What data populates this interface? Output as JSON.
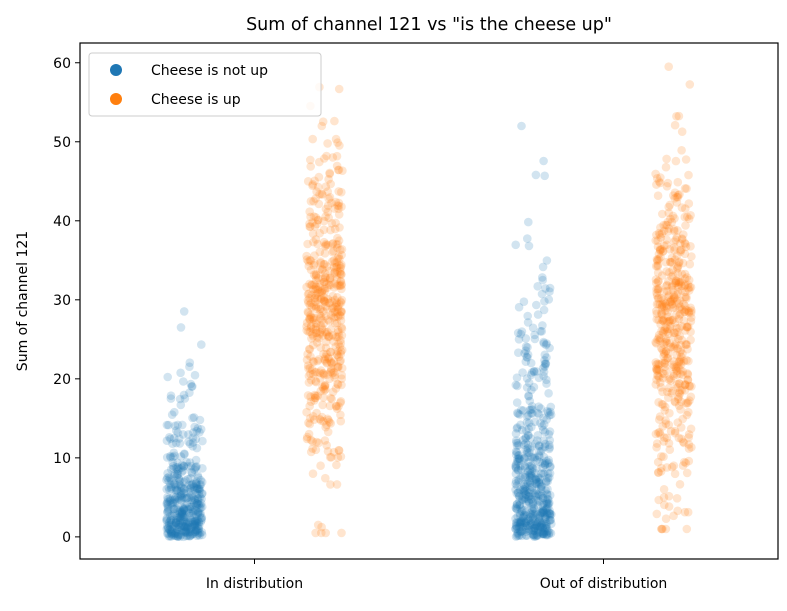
{
  "chart_data": {
    "type": "scatter",
    "subtype": "strip",
    "title": "Sum of channel 121 vs \"is the cheese up\"",
    "xlabel": "",
    "ylabel": "Sum of channel 121",
    "categories": [
      "In distribution",
      "Out of distribution"
    ],
    "ylim": [
      -2.8,
      62.5
    ],
    "yticks": [
      0,
      10,
      20,
      30,
      40,
      50,
      60
    ],
    "grid": false,
    "legend": {
      "placement": "top-left",
      "entries": [
        {
          "label": "Cheese is not up",
          "color": "#1f77b4"
        },
        {
          "label": "Cheese is up",
          "color": "#ff7f0e"
        }
      ]
    },
    "series": [
      {
        "name": "Cheese is not up",
        "color": "#1f77b4",
        "groups": [
          {
            "category": "In distribution",
            "n": 420,
            "min": 0,
            "max": 29,
            "median": 4,
            "distribution": "exponential",
            "scale": 5.5
          },
          {
            "category": "Out of distribution",
            "n": 520,
            "min": 0,
            "max": 52,
            "median": 6,
            "distribution": "exponential",
            "scale": 9
          }
        ]
      },
      {
        "name": "Cheese is up",
        "color": "#ff7f0e",
        "groups": [
          {
            "category": "In distribution",
            "n": 480,
            "min": 0.5,
            "max": 58.5,
            "median": 30,
            "distribution": "normal",
            "mean": 29,
            "sd": 10
          },
          {
            "category": "Out of distribution",
            "n": 480,
            "min": 1,
            "max": 59.5,
            "median": 27,
            "distribution": "normal",
            "mean": 27,
            "sd": 11
          }
        ]
      }
    ],
    "point_alpha": 0.2
  }
}
